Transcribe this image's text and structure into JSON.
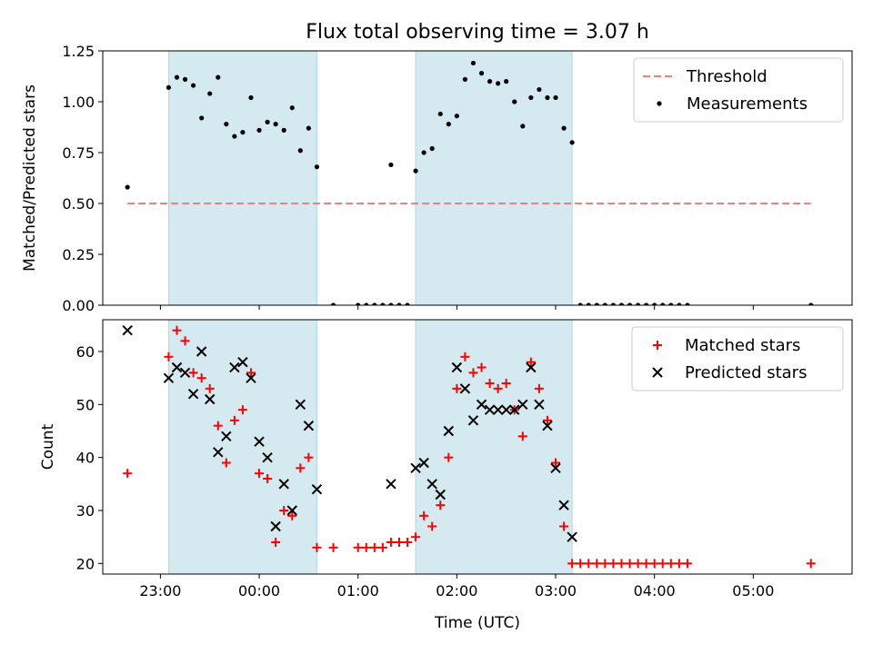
{
  "chart_data": [
    {
      "type": "scatter",
      "title": "Flux total observing time = 3.07 h",
      "xlabel": "",
      "ylabel": "Matched/Predicted stars",
      "xlim": [
        "22:25",
        "06:00"
      ],
      "ylim": [
        0,
        1.25
      ],
      "yticks": [
        0.0,
        0.25,
        0.5,
        0.75,
        1.0,
        1.25
      ],
      "ytick_labels": [
        "0.00",
        "0.25",
        "0.50",
        "0.75",
        "1.00",
        "1.25"
      ],
      "shaded_intervals": [
        [
          "23:05",
          "00:35"
        ],
        [
          "01:35",
          "03:10"
        ]
      ],
      "shade_color": "#d4eaf0",
      "legend_position": "upper right",
      "series": [
        {
          "name": "Threshold",
          "style": "dashed-line",
          "color": "#f08080",
          "points": [
            [
              "22:40",
              0.5
            ],
            [
              "05:35",
              0.5
            ]
          ]
        },
        {
          "name": "Measurements",
          "style": "dot",
          "color": "#000000",
          "points": [
            [
              "22:40",
              0.58
            ],
            [
              "23:05",
              1.07
            ],
            [
              "23:10",
              1.12
            ],
            [
              "23:15",
              1.11
            ],
            [
              "23:20",
              1.08
            ],
            [
              "23:25",
              0.92
            ],
            [
              "23:30",
              1.04
            ],
            [
              "23:35",
              1.12
            ],
            [
              "23:40",
              0.89
            ],
            [
              "23:45",
              0.83
            ],
            [
              "23:50",
              0.85
            ],
            [
              "23:55",
              1.02
            ],
            [
              "00:00",
              0.86
            ],
            [
              "00:05",
              0.9
            ],
            [
              "00:10",
              0.89
            ],
            [
              "00:15",
              0.86
            ],
            [
              "00:20",
              0.97
            ],
            [
              "00:25",
              0.76
            ],
            [
              "00:30",
              0.87
            ],
            [
              "00:35",
              0.68
            ],
            [
              "00:45",
              0.0
            ],
            [
              "01:00",
              0.0
            ],
            [
              "01:05",
              0.0
            ],
            [
              "01:10",
              0.0
            ],
            [
              "01:15",
              0.0
            ],
            [
              "01:20",
              0.0
            ],
            [
              "01:25",
              0.0
            ],
            [
              "01:30",
              0.0
            ],
            [
              "01:20",
              0.69
            ],
            [
              "01:35",
              0.66
            ],
            [
              "01:40",
              0.75
            ],
            [
              "01:45",
              0.77
            ],
            [
              "01:50",
              0.94
            ],
            [
              "01:55",
              0.89
            ],
            [
              "02:00",
              0.93
            ],
            [
              "02:05",
              1.11
            ],
            [
              "02:10",
              1.19
            ],
            [
              "02:15",
              1.14
            ],
            [
              "02:20",
              1.1
            ],
            [
              "02:25",
              1.09
            ],
            [
              "02:30",
              1.1
            ],
            [
              "02:35",
              1.0
            ],
            [
              "02:40",
              0.88
            ],
            [
              "02:45",
              1.02
            ],
            [
              "02:50",
              1.06
            ],
            [
              "02:55",
              1.02
            ],
            [
              "03:00",
              1.02
            ],
            [
              "03:05",
              0.87
            ],
            [
              "03:10",
              0.8
            ],
            [
              "03:15",
              0.0
            ],
            [
              "03:20",
              0.0
            ],
            [
              "03:25",
              0.0
            ],
            [
              "03:30",
              0.0
            ],
            [
              "03:35",
              0.0
            ],
            [
              "03:40",
              0.0
            ],
            [
              "03:45",
              0.0
            ],
            [
              "03:50",
              0.0
            ],
            [
              "03:55",
              0.0
            ],
            [
              "04:00",
              0.0
            ],
            [
              "04:05",
              0.0
            ],
            [
              "04:10",
              0.0
            ],
            [
              "04:15",
              0.0
            ],
            [
              "04:20",
              0.0
            ],
            [
              "05:35",
              0.0
            ]
          ]
        }
      ]
    },
    {
      "type": "scatter",
      "title": "",
      "xlabel": "Time (UTC)",
      "ylabel": "Count",
      "xlim": [
        "22:25",
        "06:00"
      ],
      "ylim": [
        18,
        66
      ],
      "xticks": [
        "23:00",
        "00:00",
        "01:00",
        "02:00",
        "03:00",
        "04:00",
        "05:00"
      ],
      "yticks": [
        20,
        30,
        40,
        50,
        60
      ],
      "ytick_labels": [
        "20",
        "30",
        "40",
        "50",
        "60"
      ],
      "shaded_intervals": [
        [
          "23:05",
          "00:35"
        ],
        [
          "01:35",
          "03:10"
        ]
      ],
      "shade_color": "#d4eaf0",
      "legend_position": "upper right",
      "series": [
        {
          "name": "Matched stars",
          "style": "plus",
          "color": "#ff0000",
          "points": [
            [
              "22:40",
              37
            ],
            [
              "23:05",
              59
            ],
            [
              "23:10",
              64
            ],
            [
              "23:15",
              62
            ],
            [
              "23:20",
              56
            ],
            [
              "23:25",
              55
            ],
            [
              "23:30",
              53
            ],
            [
              "23:35",
              46
            ],
            [
              "23:40",
              39
            ],
            [
              "23:45",
              47
            ],
            [
              "23:50",
              49
            ],
            [
              "23:55",
              56
            ],
            [
              "00:00",
              37
            ],
            [
              "00:05",
              36
            ],
            [
              "00:10",
              24
            ],
            [
              "00:15",
              30
            ],
            [
              "00:20",
              29
            ],
            [
              "00:25",
              38
            ],
            [
              "00:30",
              40
            ],
            [
              "00:35",
              23
            ],
            [
              "00:45",
              23
            ],
            [
              "01:00",
              23
            ],
            [
              "01:05",
              23
            ],
            [
              "01:10",
              23
            ],
            [
              "01:15",
              23
            ],
            [
              "01:20",
              24
            ],
            [
              "01:25",
              24
            ],
            [
              "01:30",
              24
            ],
            [
              "01:35",
              25
            ],
            [
              "01:40",
              29
            ],
            [
              "01:45",
              27
            ],
            [
              "01:50",
              31
            ],
            [
              "01:55",
              40
            ],
            [
              "02:00",
              53
            ],
            [
              "02:05",
              59
            ],
            [
              "02:10",
              56
            ],
            [
              "02:15",
              57
            ],
            [
              "02:20",
              54
            ],
            [
              "02:25",
              53
            ],
            [
              "02:30",
              54
            ],
            [
              "02:35",
              49
            ],
            [
              "02:40",
              44
            ],
            [
              "02:45",
              58
            ],
            [
              "02:50",
              53
            ],
            [
              "02:55",
              47
            ],
            [
              "03:00",
              39
            ],
            [
              "03:05",
              27
            ],
            [
              "03:10",
              20
            ],
            [
              "03:15",
              20
            ],
            [
              "03:20",
              20
            ],
            [
              "03:25",
              20
            ],
            [
              "03:30",
              20
            ],
            [
              "03:35",
              20
            ],
            [
              "03:40",
              20
            ],
            [
              "03:45",
              20
            ],
            [
              "03:50",
              20
            ],
            [
              "03:55",
              20
            ],
            [
              "04:00",
              20
            ],
            [
              "04:05",
              20
            ],
            [
              "04:10",
              20
            ],
            [
              "04:15",
              20
            ],
            [
              "04:20",
              20
            ],
            [
              "05:35",
              20
            ]
          ]
        },
        {
          "name": "Predicted stars",
          "style": "x",
          "color": "#000000",
          "points": [
            [
              "22:40",
              64
            ],
            [
              "23:05",
              55
            ],
            [
              "23:10",
              57
            ],
            [
              "23:15",
              56
            ],
            [
              "23:20",
              52
            ],
            [
              "23:25",
              60
            ],
            [
              "23:30",
              51
            ],
            [
              "23:35",
              41
            ],
            [
              "23:40",
              44
            ],
            [
              "23:45",
              57
            ],
            [
              "23:50",
              58
            ],
            [
              "23:55",
              55
            ],
            [
              "00:00",
              43
            ],
            [
              "00:05",
              40
            ],
            [
              "00:10",
              27
            ],
            [
              "00:15",
              35
            ],
            [
              "00:20",
              30
            ],
            [
              "00:25",
              50
            ],
            [
              "00:30",
              46
            ],
            [
              "00:35",
              34
            ],
            [
              "01:20",
              35
            ],
            [
              "01:35",
              38
            ],
            [
              "01:40",
              39
            ],
            [
              "01:45",
              35
            ],
            [
              "01:50",
              33
            ],
            [
              "01:55",
              45
            ],
            [
              "02:00",
              57
            ],
            [
              "02:05",
              53
            ],
            [
              "02:10",
              47
            ],
            [
              "02:15",
              50
            ],
            [
              "02:20",
              49
            ],
            [
              "02:25",
              49
            ],
            [
              "02:30",
              49
            ],
            [
              "02:35",
              49
            ],
            [
              "02:40",
              50
            ],
            [
              "02:45",
              57
            ],
            [
              "02:50",
              50
            ],
            [
              "02:55",
              46
            ],
            [
              "03:00",
              38
            ],
            [
              "03:05",
              31
            ],
            [
              "03:10",
              25
            ]
          ]
        }
      ]
    }
  ]
}
